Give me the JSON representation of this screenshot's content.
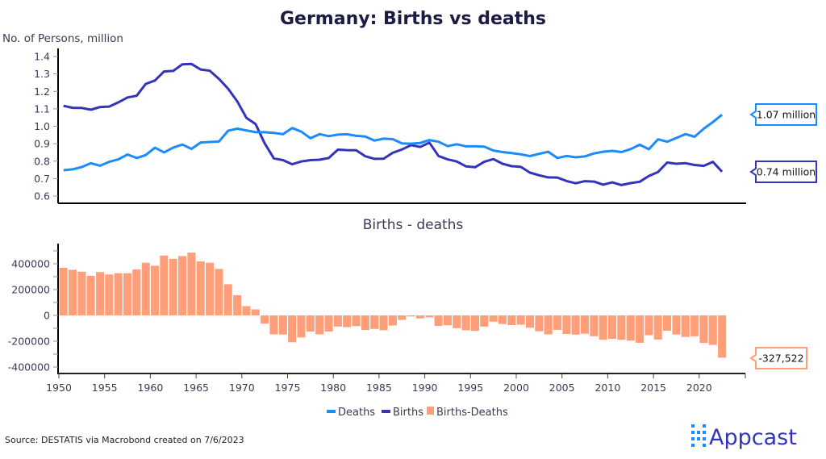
{
  "chart_data": [
    {
      "type": "line",
      "title": "Germany: Births vs deaths",
      "ylabel": "No. of Persons, million",
      "xlabel": "",
      "ylim": [
        0.6,
        1.4
      ],
      "yticks": [
        "0.6",
        "0.7",
        "0.8",
        "0.9",
        "1.0",
        "1.1",
        "1.2",
        "1.3",
        "1.4"
      ],
      "x_start": 1950,
      "series": [
        {
          "name": "Deaths",
          "color": "#1a8cff",
          "values": [
            0.748,
            0.753,
            0.766,
            0.788,
            0.774,
            0.796,
            0.81,
            0.838,
            0.818,
            0.835,
            0.877,
            0.85,
            0.878,
            0.895,
            0.87,
            0.907,
            0.91,
            0.912,
            0.974,
            0.986,
            0.976,
            0.966,
            0.966,
            0.962,
            0.954,
            0.99,
            0.969,
            0.931,
            0.955,
            0.943,
            0.952,
            0.954,
            0.945,
            0.941,
            0.918,
            0.929,
            0.926,
            0.902,
            0.9,
            0.904,
            0.921,
            0.911,
            0.886,
            0.897,
            0.885,
            0.885,
            0.883,
            0.861,
            0.852,
            0.846,
            0.839,
            0.829,
            0.842,
            0.854,
            0.818,
            0.83,
            0.822,
            0.827,
            0.844,
            0.854,
            0.859,
            0.852,
            0.869,
            0.894,
            0.868,
            0.925,
            0.911,
            0.933,
            0.955,
            0.94,
            0.986,
            1.024,
            1.066
          ],
          "end_label": "1.07 million"
        },
        {
          "name": "Births",
          "color": "#3333bb",
          "values": [
            1.117,
            1.106,
            1.105,
            1.095,
            1.11,
            1.113,
            1.137,
            1.165,
            1.175,
            1.243,
            1.262,
            1.314,
            1.317,
            1.355,
            1.357,
            1.325,
            1.318,
            1.272,
            1.215,
            1.143,
            1.048,
            1.013,
            0.902,
            0.816,
            0.806,
            0.782,
            0.798,
            0.806,
            0.808,
            0.818,
            0.866,
            0.863,
            0.862,
            0.828,
            0.813,
            0.814,
            0.848,
            0.867,
            0.892,
            0.881,
            0.906,
            0.83,
            0.81,
            0.798,
            0.77,
            0.765,
            0.796,
            0.812,
            0.785,
            0.771,
            0.767,
            0.734,
            0.719,
            0.707,
            0.706,
            0.686,
            0.673,
            0.685,
            0.683,
            0.665,
            0.678,
            0.663,
            0.674,
            0.682,
            0.715,
            0.738,
            0.792,
            0.785,
            0.788,
            0.778,
            0.773,
            0.796,
            0.739
          ],
          "end_label": "0.74 million"
        }
      ]
    },
    {
      "type": "bar",
      "title": "Births - deaths",
      "ylim": [
        -450000,
        550000
      ],
      "yticks": [
        "-400000",
        "-200000",
        "0",
        "200000",
        "400000"
      ],
      "xticks": [
        "1950",
        "1955",
        "1960",
        "1965",
        "1970",
        "1975",
        "1980",
        "1985",
        "1990",
        "1995",
        "2000",
        "2005",
        "2010",
        "2015",
        "2020"
      ],
      "x_start": 1950,
      "series": [
        {
          "name": "Births-Deaths",
          "color": "#ff9f7a",
          "values": [
            369000,
            353000,
            339000,
            307000,
            336000,
            317000,
            327000,
            327000,
            357000,
            408000,
            385000,
            464000,
            439000,
            460000,
            487000,
            418000,
            408000,
            360000,
            241000,
            157000,
            72000,
            47000,
            -64000,
            -146000,
            -148000,
            -208000,
            -171000,
            -125000,
            -147000,
            -125000,
            -86000,
            -91000,
            -83000,
            -113000,
            -105000,
            -115000,
            -78000,
            -35000,
            -8000,
            -23000,
            -15000,
            -81000,
            -76000,
            -99000,
            -115000,
            -120000,
            -87000,
            -49000,
            -67000,
            -75000,
            -72000,
            -95000,
            -123000,
            -147000,
            -112000,
            -144000,
            -149000,
            -142000,
            -161000,
            -189000,
            -181000,
            -189000,
            -195000,
            -212000,
            -153000,
            -187000,
            -119000,
            -148000,
            -167000,
            -162000,
            -213000,
            -228000,
            -327522
          ],
          "end_label": "-327,522"
        }
      ]
    }
  ],
  "legend": [
    {
      "label": "Deaths",
      "color": "#1a8cff"
    },
    {
      "label": "Births",
      "color": "#3333bb"
    },
    {
      "label": "Births-Deaths",
      "color": "#ff9f7a"
    }
  ],
  "source": "Source: DESTATIS via Macrobond created on 7/6/2023",
  "logo": {
    "text": "Appcast",
    "color": "#3333bb"
  }
}
